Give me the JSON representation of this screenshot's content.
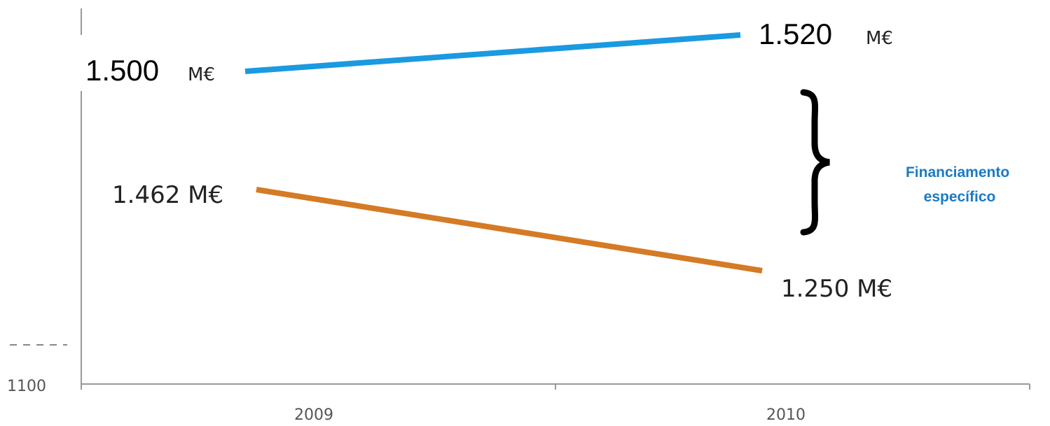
{
  "chart_data": {
    "type": "line",
    "categories": [
      "2009",
      "2010"
    ],
    "series": [
      {
        "values": [
          1500,
          1520
        ],
        "labels": [
          "1.500",
          "1.520"
        ],
        "unit": "M€",
        "color": "#1a9ae0"
      },
      {
        "values": [
          1462,
          1250
        ],
        "labels": [
          "1.462 M€",
          "1.250 M€"
        ],
        "color": "#d57a25"
      }
    ],
    "y_tick_labels": [
      "1100"
    ],
    "brace_annotation": [
      "Financiamento",
      "específico"
    ],
    "grid": false
  }
}
